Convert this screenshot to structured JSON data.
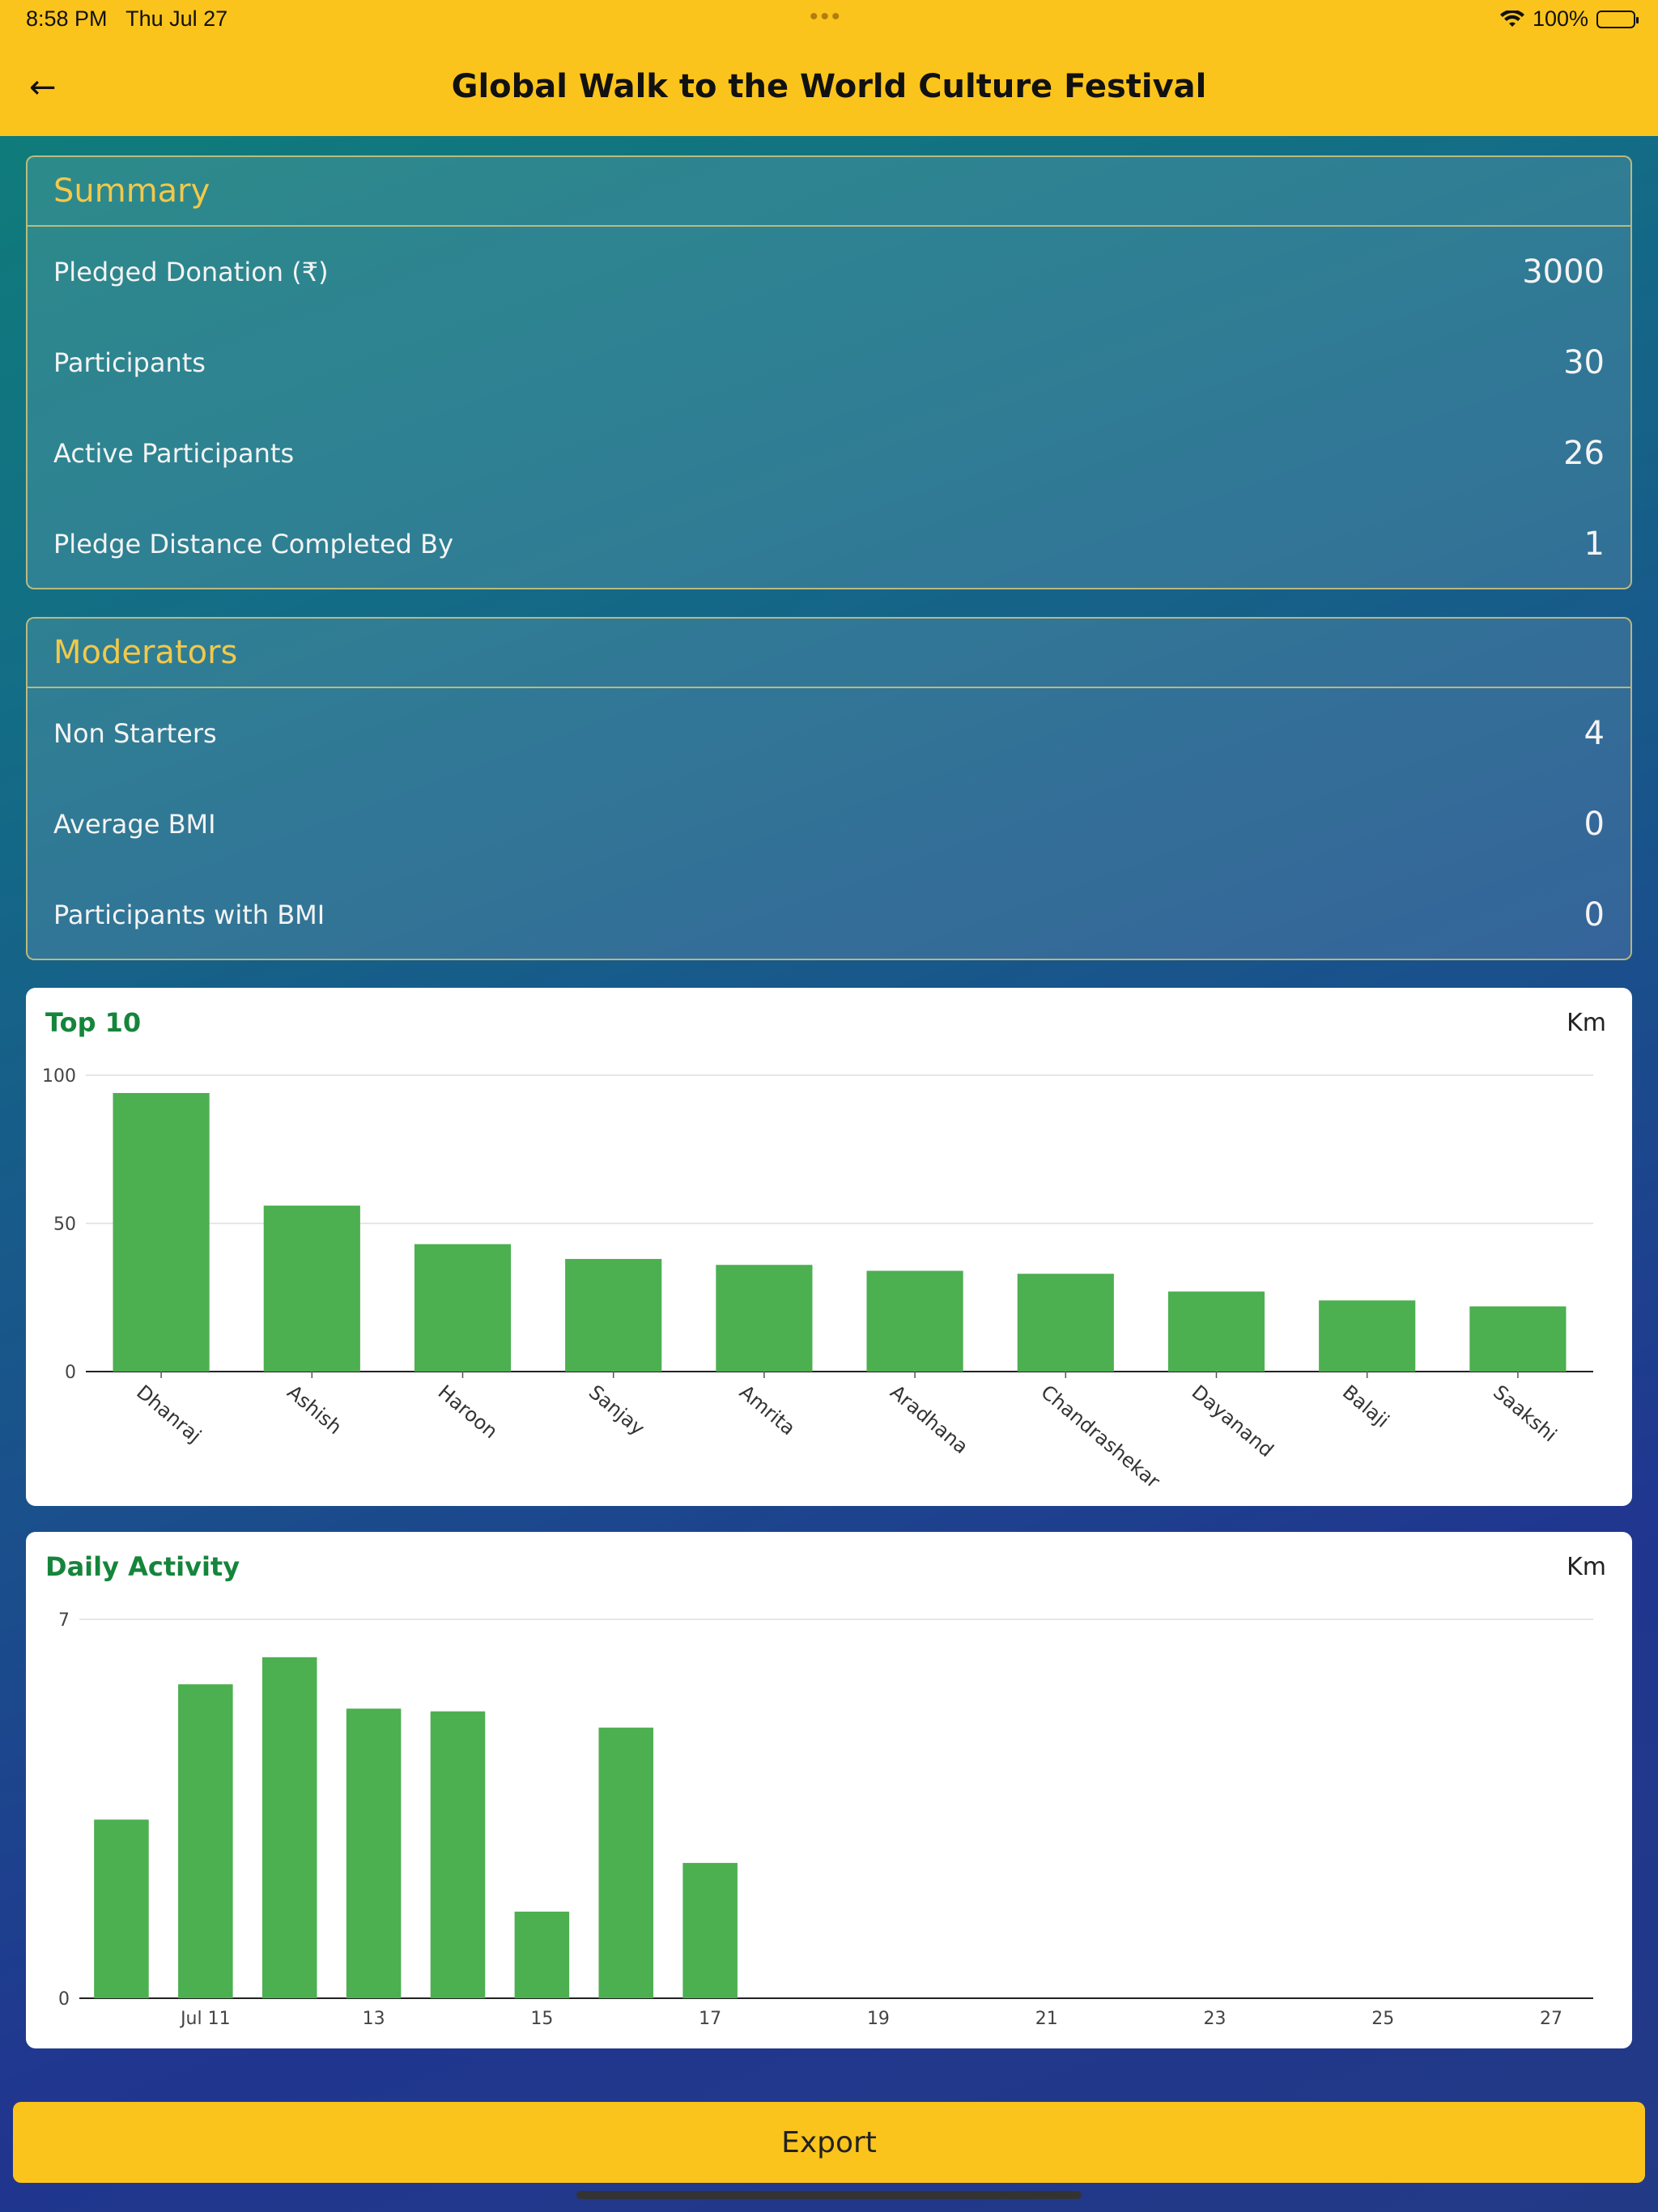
{
  "status": {
    "time": "8:58 PM",
    "date": "Thu Jul 27",
    "battery": "100%"
  },
  "header": {
    "title": "Global Walk to the World Culture Festival",
    "back_icon": "arrow-left-icon"
  },
  "summary": {
    "heading": "Summary",
    "rows": [
      {
        "label": "Pledged Donation (₹)",
        "value": "3000"
      },
      {
        "label": "Participants",
        "value": "30"
      },
      {
        "label": "Active Participants",
        "value": "26"
      },
      {
        "label": "Pledge Distance Completed By",
        "value": "1"
      }
    ]
  },
  "moderators": {
    "heading": "Moderators",
    "rows": [
      {
        "label": "Non Starters",
        "value": "4"
      },
      {
        "label": "Average BMI",
        "value": "0"
      },
      {
        "label": "Participants with BMI",
        "value": "0"
      }
    ]
  },
  "top10": {
    "title": "Top 10",
    "unit": "Km"
  },
  "daily": {
    "title": "Daily Activity",
    "unit": "Km"
  },
  "export_label": "Export",
  "colors": {
    "accent": "#fbc41c",
    "bar": "#4caf50",
    "chart_title": "#15853b"
  },
  "chart_data": [
    {
      "type": "bar",
      "title": "Top 10",
      "ylabel": "Km",
      "categories": [
        "Dhanraj",
        "Ashish",
        "Haroon",
        "Sanjay",
        "Amrita",
        "Aradhana",
        "Chandrashekar",
        "Dayanand",
        "Balaji",
        "Saakshi"
      ],
      "values": [
        94,
        56,
        43,
        38,
        36,
        34,
        33,
        27,
        24,
        22
      ],
      "ylim": [
        0,
        100
      ],
      "yticks": [
        0,
        50,
        100
      ],
      "grid": true
    },
    {
      "type": "bar",
      "title": "Daily Activity",
      "ylabel": "Km",
      "x": [
        "Jul 10",
        "Jul 11",
        "Jul 12",
        "Jul 13",
        "Jul 14",
        "Jul 15",
        "Jul 16",
        "Jul 17"
      ],
      "values": [
        3.3,
        5.8,
        6.3,
        5.35,
        5.3,
        1.6,
        5.0,
        2.5
      ],
      "ylim": [
        0,
        7
      ],
      "yticks": [
        0,
        7
      ],
      "xticks": [
        "Jul 11",
        "13",
        "15",
        "17",
        "19",
        "21",
        "23",
        "25",
        "27"
      ],
      "xrange_days": [
        "Jul 10",
        "Jul 27"
      ],
      "grid": true
    }
  ]
}
